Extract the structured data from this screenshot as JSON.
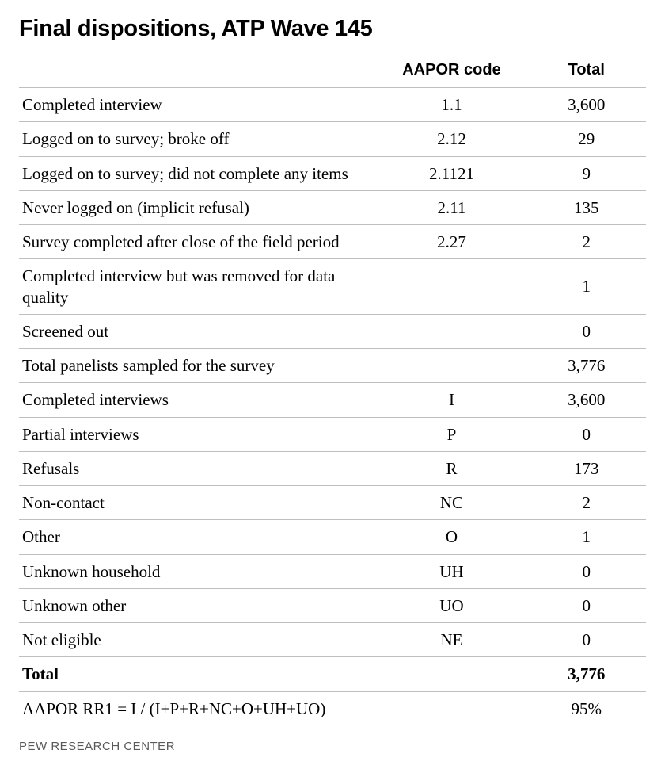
{
  "title": "Final dispositions, ATP Wave 145",
  "columns": {
    "label": "",
    "code": "AAPOR code",
    "total": "Total"
  },
  "rows": [
    {
      "label": "Completed interview",
      "code": "1.1",
      "total": "3,600",
      "bold": false
    },
    {
      "label": "Logged on to survey; broke off",
      "code": "2.12",
      "total": "29",
      "bold": false
    },
    {
      "label": "Logged on to survey; did not complete any items",
      "code": "2.1121",
      "total": "9",
      "bold": false
    },
    {
      "label": "Never logged on (implicit refusal)",
      "code": "2.11",
      "total": "135",
      "bold": false
    },
    {
      "label": "Survey completed after close of the field period",
      "code": "2.27",
      "total": "2",
      "bold": false
    },
    {
      "label": "Completed interview but was removed for data quality",
      "code": "",
      "total": "1",
      "bold": false
    },
    {
      "label": "Screened out",
      "code": "",
      "total": "0",
      "bold": false
    },
    {
      "label": "Total panelists sampled for the survey",
      "code": "",
      "total": "3,776",
      "bold": false
    },
    {
      "label": "Completed interviews",
      "code": "I",
      "total": "3,600",
      "bold": false
    },
    {
      "label": "Partial interviews",
      "code": "P",
      "total": "0",
      "bold": false
    },
    {
      "label": "Refusals",
      "code": "R",
      "total": "173",
      "bold": false
    },
    {
      "label": "Non-contact",
      "code": "NC",
      "total": "2",
      "bold": false
    },
    {
      "label": "Other",
      "code": "O",
      "total": "1",
      "bold": false
    },
    {
      "label": "Unknown household",
      "code": "UH",
      "total": "0",
      "bold": false
    },
    {
      "label": "Unknown other",
      "code": "UO",
      "total": "0",
      "bold": false
    },
    {
      "label": "Not eligible",
      "code": "NE",
      "total": "0",
      "bold": false
    },
    {
      "label": "Total",
      "code": "",
      "total": "3,776",
      "bold": true
    },
    {
      "label": "AAPOR RR1 = I / (I+P+R+NC+O+UH+UO)",
      "code": "",
      "total": "95%",
      "bold": false
    }
  ],
  "footer": "PEW RESEARCH CENTER",
  "style": {
    "type": "table",
    "background_color": "#ffffff",
    "text_color": "#000000",
    "border_color": "#bfbfbf",
    "title_fontsize": 29,
    "title_font": "Arial",
    "header_fontsize": 20,
    "header_font": "Arial",
    "body_fontsize": 21,
    "body_font": "Georgia",
    "footer_fontsize": 15,
    "footer_color": "#5a5a5a",
    "column_widths_pct": [
      57,
      24,
      19
    ],
    "column_align": [
      "left",
      "center",
      "center"
    ]
  }
}
